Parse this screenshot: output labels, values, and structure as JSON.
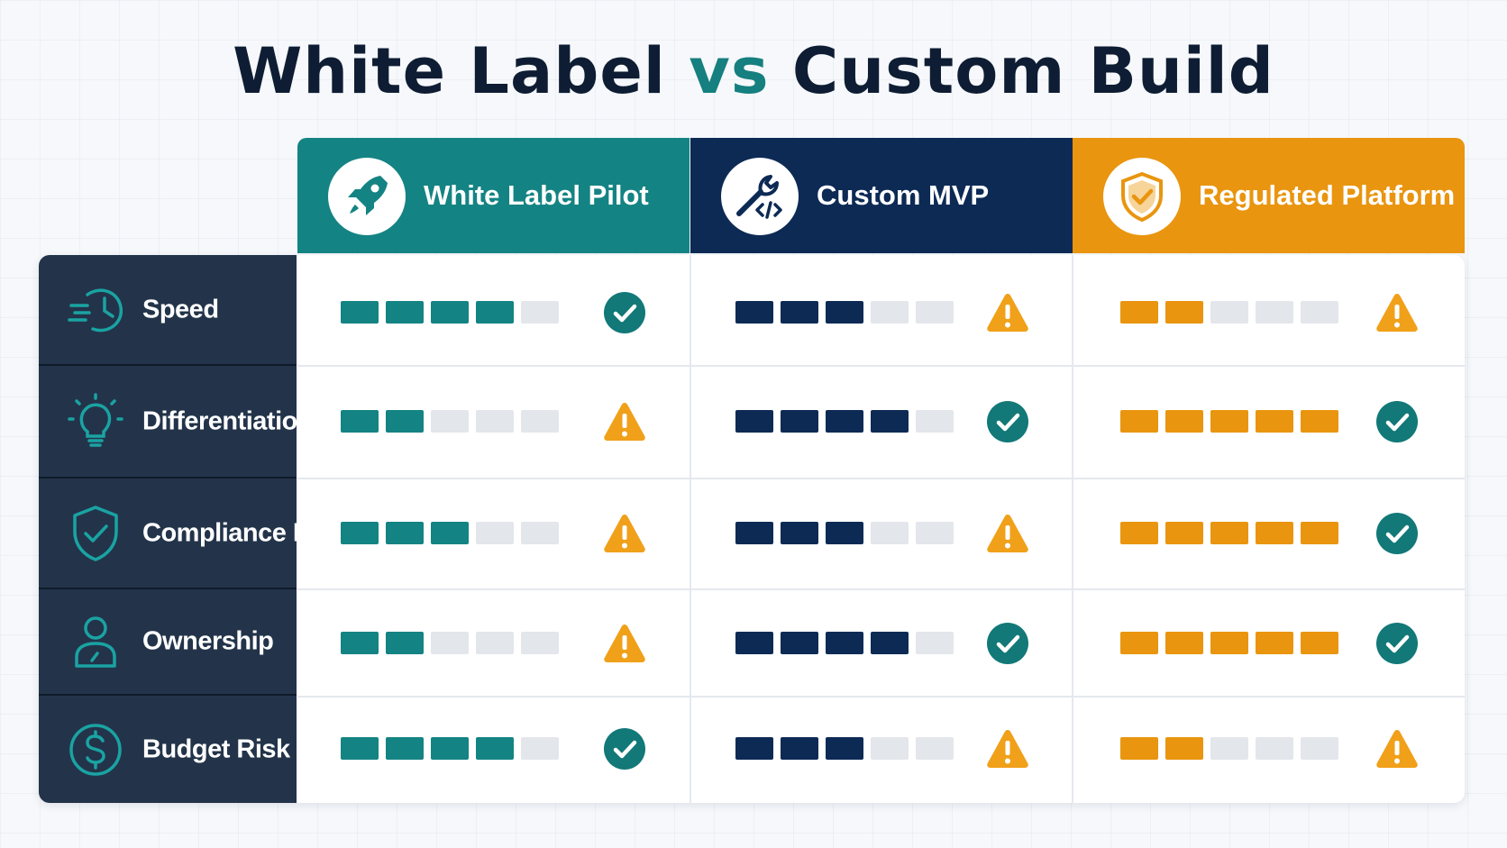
{
  "title": {
    "part1": "White Label",
    "vs": "vs",
    "part2": "Custom Build"
  },
  "colors": {
    "teal": "#148383",
    "navy": "#0d2a55",
    "orange": "#e9950f",
    "empty_segment": "#e3e6eb",
    "row_label_bg": "#23344a",
    "check": "#127878",
    "warning": "#f0a019"
  },
  "columns": [
    {
      "label": "White Label Pilot",
      "icon": "rocket-icon",
      "color": "#148383"
    },
    {
      "label": "Custom MVP",
      "icon": "wrench-code-icon",
      "color": "#0d2a55"
    },
    {
      "label": "Regulated Platform",
      "icon": "shield-check-icon",
      "color": "#e9950f"
    }
  ],
  "rows": [
    {
      "label": "Speed",
      "icon": "clock-speed-icon"
    },
    {
      "label": "Differentiation",
      "icon": "lightbulb-icon"
    },
    {
      "label": "Compliance Fit",
      "icon": "shield-check-icon"
    },
    {
      "label": "Ownership",
      "icon": "user-icon"
    },
    {
      "label": "Budget Risk",
      "icon": "dollar-icon"
    }
  ],
  "chart_data": {
    "type": "table",
    "scale_max": 5,
    "columns": [
      "White Label Pilot",
      "Custom MVP",
      "Regulated Platform"
    ],
    "rows": [
      "Speed",
      "Differentiation",
      "Compliance Fit",
      "Ownership",
      "Budget Risk"
    ],
    "ratings": [
      [
        4,
        3,
        2
      ],
      [
        2,
        4,
        5
      ],
      [
        3,
        3,
        5
      ],
      [
        2,
        4,
        5
      ],
      [
        4,
        3,
        2
      ]
    ],
    "status": [
      [
        "check",
        "warning",
        "warning"
      ],
      [
        "warning",
        "check",
        "check"
      ],
      [
        "warning",
        "warning",
        "check"
      ],
      [
        "warning",
        "check",
        "check"
      ],
      [
        "check",
        "warning",
        "warning"
      ]
    ]
  }
}
